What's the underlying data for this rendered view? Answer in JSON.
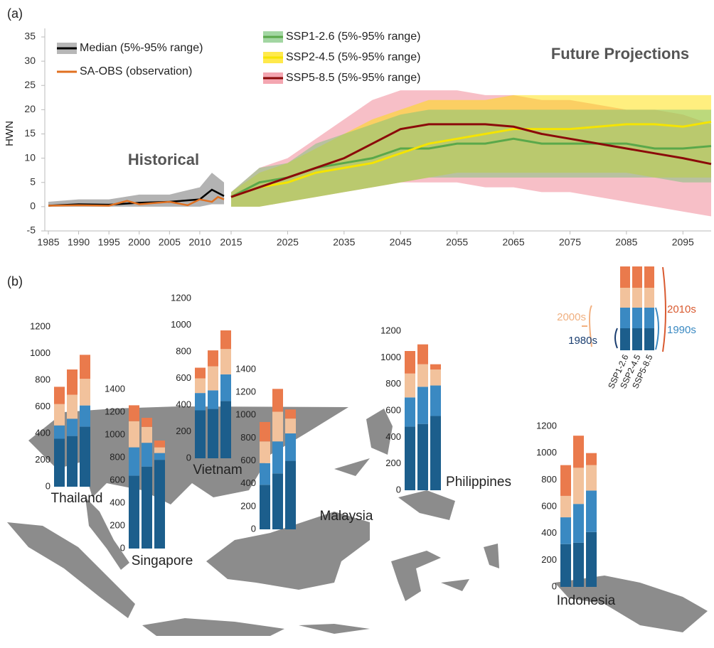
{
  "chart_data": [
    {
      "type": "line",
      "panel_label": "(a)",
      "ylabel": "HWN",
      "annotations": [
        "Historical",
        "Future Projections"
      ],
      "xlim": [
        1985,
        2100
      ],
      "ylim": [
        -5,
        35
      ],
      "yticks": [
        -5,
        0,
        5,
        10,
        15,
        20,
        25,
        30,
        35
      ],
      "xticks": [
        1985,
        1990,
        1995,
        2000,
        2005,
        2010,
        2015,
        2025,
        2035,
        2045,
        2055,
        2065,
        2075,
        2085,
        2095
      ],
      "series": [
        {
          "name": "Median (5%-95% range)",
          "color": "#000000",
          "band_color": "#999999",
          "x": [
            1985,
            1990,
            1995,
            2000,
            2005,
            2010,
            2012,
            2014
          ],
          "values": [
            0.2,
            0.5,
            0.4,
            0.8,
            1.0,
            1.5,
            3.5,
            2.2
          ],
          "low": [
            0,
            0,
            0,
            0,
            0,
            0,
            0.5,
            0.5
          ],
          "high": [
            1,
            1.5,
            1.5,
            2.5,
            2.5,
            4,
            7,
            5
          ]
        },
        {
          "name": "SA-OBS (observation)",
          "color": "#e07020",
          "x": [
            1985,
            1990,
            1995,
            1998,
            2000,
            2005,
            2008,
            2010,
            2012,
            2013,
            2014
          ],
          "values": [
            0.2,
            0.3,
            0.2,
            1.2,
            0.5,
            1,
            0.3,
            1.5,
            1,
            2,
            1.5
          ]
        },
        {
          "name": "SSP1-2.6 (5%-95% range)",
          "color": "#5aa84a",
          "band_color": "#7ac47a",
          "x": [
            2015,
            2020,
            2025,
            2030,
            2035,
            2040,
            2045,
            2050,
            2055,
            2060,
            2065,
            2070,
            2075,
            2080,
            2085,
            2090,
            2095,
            2100
          ],
          "values": [
            2,
            5,
            6,
            8,
            9,
            10,
            12,
            12,
            13,
            13,
            14,
            13,
            13,
            13,
            13,
            12,
            12,
            12.5
          ],
          "low": [
            0,
            0,
            1,
            2,
            3,
            4,
            5,
            6,
            6,
            6,
            6,
            6,
            6,
            6,
            6,
            6,
            5,
            5
          ],
          "high": [
            3,
            8,
            9,
            13,
            15,
            17,
            19,
            20,
            20,
            20,
            20,
            20,
            20,
            20,
            20,
            20,
            20,
            20
          ]
        },
        {
          "name": "SSP2-4.5 (5%-95% range)",
          "color": "#f5e400",
          "band_color": "#ffe000",
          "x": [
            2015,
            2020,
            2025,
            2030,
            2035,
            2040,
            2045,
            2050,
            2055,
            2060,
            2065,
            2070,
            2075,
            2080,
            2085,
            2090,
            2095,
            2100
          ],
          "values": [
            2,
            4,
            5,
            7,
            8,
            9,
            11,
            13,
            14,
            15,
            16,
            16,
            16,
            16.5,
            17,
            17,
            16.5,
            17.5
          ],
          "low": [
            0,
            0,
            1,
            2,
            3,
            4,
            5,
            6,
            7,
            7,
            7,
            7,
            7,
            7,
            7,
            6,
            6,
            6
          ],
          "high": [
            3,
            7,
            9,
            12,
            15,
            18,
            20,
            22,
            22,
            22,
            23,
            23,
            23,
            23,
            23,
            23,
            23,
            23
          ]
        },
        {
          "name": "SSP5-8.5 (5%-95% range)",
          "color": "#8b0a0a",
          "band_color": "#f08090",
          "x": [
            2015,
            2020,
            2025,
            2030,
            2035,
            2040,
            2045,
            2050,
            2055,
            2060,
            2065,
            2070,
            2075,
            2080,
            2085,
            2090,
            2095,
            2100
          ],
          "values": [
            2,
            4,
            6,
            8,
            10,
            13,
            16,
            17,
            17,
            17,
            16.5,
            15,
            14,
            13,
            12,
            11,
            10,
            8.8
          ],
          "low": [
            0,
            0,
            1,
            2,
            3,
            4,
            5,
            5,
            5,
            4,
            4,
            3,
            3,
            2,
            1,
            0,
            -1,
            -2
          ],
          "high": [
            3,
            8,
            10,
            14,
            18,
            22,
            24,
            24,
            24,
            23,
            23,
            22,
            22,
            21,
            20,
            20,
            19,
            17
          ]
        }
      ]
    },
    {
      "type": "stacked_bar",
      "panel_label": "(b)",
      "segments": [
        {
          "name": "1980s",
          "color": "#1c5e8c"
        },
        {
          "name": "1990s",
          "color": "#3a89c2"
        },
        {
          "name": "2000s",
          "color": "#f2c29c"
        },
        {
          "name": "2010s",
          "color": "#ea7a4c"
        }
      ],
      "groups": [
        "SSP1-2.6",
        "SSP2-4.5",
        "SSP5-8.5"
      ],
      "countries": [
        {
          "name": "Thailand",
          "ylim": [
            0,
            1200
          ],
          "yticks": [
            0,
            200,
            400,
            600,
            800,
            1000,
            1200
          ],
          "values": [
            [
              360,
              100,
              160,
              130
            ],
            [
              380,
              130,
              180,
              190
            ],
            [
              450,
              160,
              200,
              180
            ]
          ]
        },
        {
          "name": "Singapore",
          "ylim": [
            0,
            1400
          ],
          "yticks": [
            0,
            200,
            400,
            600,
            800,
            1000,
            1200,
            1400
          ],
          "values": [
            [
              640,
              250,
              230,
              140
            ],
            [
              720,
              210,
              140,
              80
            ],
            [
              780,
              60,
              50,
              60
            ]
          ]
        },
        {
          "name": "Vietnam",
          "ylim": [
            0,
            1200
          ],
          "yticks": [
            0,
            200,
            400,
            600,
            800,
            1000,
            1200
          ],
          "values": [
            [
              360,
              130,
              110,
              80
            ],
            [
              370,
              140,
              180,
              120
            ],
            [
              430,
              200,
              190,
              140
            ]
          ]
        },
        {
          "name": "Malaysia",
          "ylim": [
            0,
            1400
          ],
          "yticks": [
            0,
            200,
            400,
            600,
            800,
            1000,
            1200,
            1400
          ],
          "values": [
            [
              390,
              190,
              190,
              170
            ],
            [
              490,
              280,
              260,
              200
            ],
            [
              600,
              240,
              130,
              80
            ]
          ]
        },
        {
          "name": "Philippines",
          "ylim": [
            0,
            1200
          ],
          "yticks": [
            0,
            200,
            400,
            600,
            800,
            1000,
            1200
          ],
          "values": [
            [
              480,
              220,
              180,
              170
            ],
            [
              500,
              280,
              170,
              150
            ],
            [
              560,
              230,
              120,
              40
            ]
          ]
        },
        {
          "name": "Indonesia",
          "ylim": [
            0,
            1200
          ],
          "yticks": [
            0,
            200,
            400,
            600,
            800,
            1000,
            1200
          ],
          "values": [
            [
              320,
              200,
              160,
              230
            ],
            [
              330,
              290,
              270,
              240
            ],
            [
              410,
              310,
              190,
              90
            ]
          ]
        }
      ]
    }
  ]
}
